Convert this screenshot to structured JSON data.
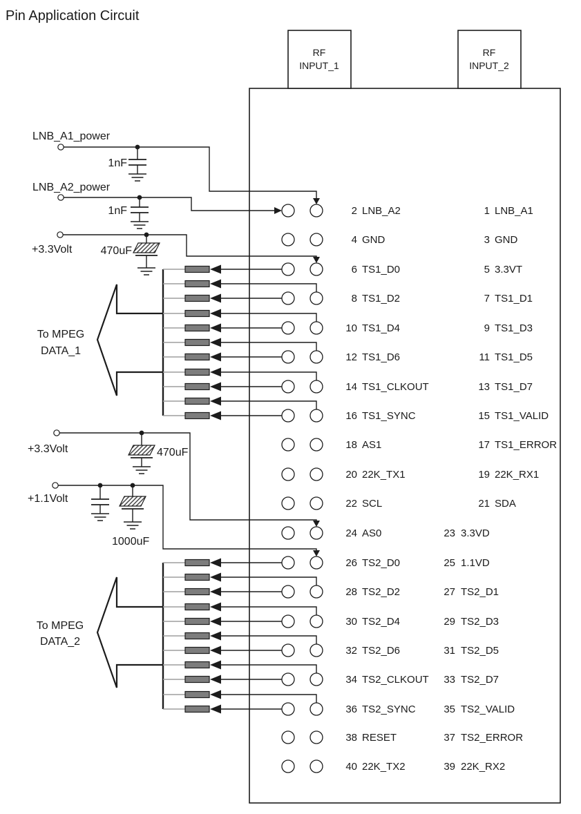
{
  "title": "Pin Application Circuit",
  "colors": {
    "line": "#1c1c1c",
    "resistor_fill": "#7d7d7d",
    "lead_gray": "#9e9e9e",
    "background": "#ffffff"
  },
  "rf_inputs": [
    {
      "line1": "RF",
      "line2": "INPUT_1"
    },
    {
      "line1": "RF",
      "line2": "INPUT_2"
    }
  ],
  "labels": {
    "lnb_a1_power": "LNB_A1_power",
    "lnb_a1_cap": "1nF",
    "lnb_a2_power": "LNB_A2_power",
    "lnb_a2_cap": "1nF",
    "v33_top": "+3.3Volt",
    "v33_top_cap": "470uF",
    "v33_mid": "+3.3Volt",
    "v33_mid_cap": "470uF",
    "v11": "+1.1Volt",
    "v11_cap": "1000uF",
    "mpeg1": [
      "To MPEG",
      "DATA_1"
    ],
    "mpeg2": [
      "To MPEG",
      "DATA_2"
    ]
  },
  "chip": {
    "pin_rows": [
      {
        "left_num": "2",
        "left_name": "LNB_A2",
        "right_num": "1",
        "right_name": "LNB_A1"
      },
      {
        "left_num": "4",
        "left_name": "GND",
        "right_num": "3",
        "right_name": "GND"
      },
      {
        "left_num": "6",
        "left_name": "TS1_D0",
        "right_num": "5",
        "right_name": "3.3VT"
      },
      {
        "left_num": "8",
        "left_name": "TS1_D2",
        "right_num": "7",
        "right_name": "TS1_D1"
      },
      {
        "left_num": "10",
        "left_name": "TS1_D4",
        "right_num": "9",
        "right_name": "TS1_D3"
      },
      {
        "left_num": "12",
        "left_name": "TS1_D6",
        "right_num": "11",
        "right_name": "TS1_D5"
      },
      {
        "left_num": "14",
        "left_name": "TS1_CLKOUT",
        "right_num": "13",
        "right_name": "TS1_D7"
      },
      {
        "left_num": "16",
        "left_name": "TS1_SYNC",
        "right_num": "15",
        "right_name": "TS1_VALID"
      },
      {
        "left_num": "18",
        "left_name": "AS1",
        "right_num": "17",
        "right_name": "TS1_ERROR"
      },
      {
        "left_num": "20",
        "left_name": "22K_TX1",
        "right_num": "19",
        "right_name": "22K_RX1"
      },
      {
        "left_num": "22",
        "left_name": "SCL",
        "right_num": "21",
        "right_name": "SDA"
      },
      {
        "left_num": "24",
        "left_name": "AS0",
        "right_num": "23",
        "right_name": "3.3VD"
      },
      {
        "left_num": "26",
        "left_name": "TS2_D0",
        "right_num": "25",
        "right_name": "1.1VD"
      },
      {
        "left_num": "28",
        "left_name": "TS2_D2",
        "right_num": "27",
        "right_name": "TS2_D1"
      },
      {
        "left_num": "30",
        "left_name": "TS2_D4",
        "right_num": "29",
        "right_name": "TS2_D3"
      },
      {
        "left_num": "32",
        "left_name": "TS2_D6",
        "right_num": "31",
        "right_name": "TS2_D5"
      },
      {
        "left_num": "34",
        "left_name": "TS2_CLKOUT",
        "right_num": "33",
        "right_name": "TS2_D7"
      },
      {
        "left_num": "36",
        "left_name": "TS2_SYNC",
        "right_num": "35",
        "right_name": "TS2_VALID"
      },
      {
        "left_num": "38",
        "left_name": "RESET",
        "right_num": "37",
        "right_name": "TS2_ERROR"
      },
      {
        "left_num": "40",
        "left_name": "22K_TX2",
        "right_num": "39",
        "right_name": "22K_RX2"
      }
    ]
  }
}
